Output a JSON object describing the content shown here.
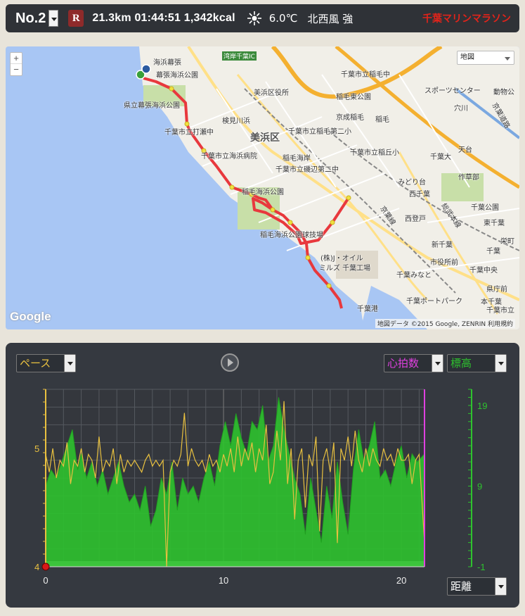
{
  "header": {
    "run_number": "No.2",
    "route_badge": "R",
    "stats": "21.3km 01:44:51 1,342kcal",
    "weather_icon": "sun-icon",
    "temperature": "6.0℃",
    "wind": "北西風 強",
    "event_name": "千葉マリンマラソン",
    "event_color": "#e2231a"
  },
  "map": {
    "zoom_in": "+",
    "zoom_out": "−",
    "type_selector": "地図",
    "logo": "Google",
    "attribution": "地図データ ©2015 Google, ZENRIN   利用規約",
    "labels": {
      "l1": "海浜幕張",
      "l2": "幕張海浜公園",
      "l3": "県立幕張海浜公園",
      "l4": "湾岸千葉IC",
      "l5": "千葉市立稲毛中",
      "l6": "美浜区役所",
      "l7": "稲毛東公園",
      "l8": "検見川浜",
      "l9": "京成稲毛",
      "l10": "稲毛",
      "l11": "千葉市立打瀬中",
      "l12": "美浜区",
      "l13": "千葉市立稲毛第二小",
      "l14": "千葉市立海浜病院",
      "l15": "稲毛海岸",
      "l16": "千葉市立稲丘小",
      "l17": "千葉市立磯辺第二中",
      "l18": "みどり台",
      "l19": "稲毛海浜公園",
      "l20": "稲毛海浜公園球技場",
      "l21": "(株)J・オイル",
      "l22": "ミルズ 千葉工場",
      "l23": "千葉港",
      "l24": "千葉ポートパーク",
      "l25": "スポーツセンター",
      "l26": "動物公",
      "l27": "穴川",
      "l28": "京葉道路",
      "l29": "千葉大",
      "l30": "天台",
      "l31": "作草部",
      "l32": "西千葉",
      "l33": "京葉線",
      "l34": "総武本線",
      "l35": "千葉公園",
      "l36": "西登戸",
      "l37": "東千葉",
      "l38": "新千葉",
      "l39": "栄町",
      "l40": "市役所前",
      "l41": "千葉中央",
      "l42": "千葉みなと",
      "l43": "県庁前",
      "l44": "本千葉",
      "l45": "千葉市立",
      "l46": "千葉"
    },
    "route_numbers": [
      "15",
      "20",
      "133",
      "14",
      "357",
      "5",
      "15",
      "10",
      "51"
    ],
    "colors": {
      "sea": "#a8c6f4",
      "land": "#f1efe8",
      "route": "#e8383d"
    }
  },
  "chart_panel": {
    "left_metric": "ペース",
    "heart_rate": "心拍数",
    "elevation": "標高",
    "x_metric": "距離",
    "play_icon": "play-icon",
    "colors": {
      "pace": "#e8c040",
      "heart": "#e040e0",
      "elevation": "#2ec22e"
    }
  },
  "chart_data": {
    "type": "area",
    "xlabel": "",
    "x_ticks": [
      "0",
      "10",
      "20"
    ],
    "xlim": [
      0,
      21.3
    ],
    "left_axis": {
      "ticks": [
        "4",
        "5"
      ],
      "ylim": [
        4,
        5.5
      ]
    },
    "right_axis": {
      "ticks": [
        "-1",
        "9",
        "19"
      ],
      "ylim": [
        -1,
        21
      ]
    },
    "series": [
      {
        "name": "標高",
        "axis": "right",
        "x": [
          0,
          0.3,
          0.6,
          0.9,
          1.2,
          1.5,
          1.8,
          2.0,
          2.3,
          2.6,
          2.9,
          3.2,
          3.5,
          3.8,
          4.1,
          4.4,
          4.7,
          5.0,
          5.3,
          5.6,
          5.9,
          6.2,
          6.5,
          6.8,
          7.1,
          7.4,
          7.7,
          8.0,
          8.3,
          8.6,
          8.9,
          9.2,
          9.5,
          9.8,
          10.1,
          10.4,
          10.7,
          11.0,
          11.3,
          11.6,
          11.9,
          12.2,
          12.5,
          12.8,
          13.1,
          13.4,
          13.7,
          14.0,
          14.3,
          14.6,
          14.9,
          15.2,
          15.5,
          15.8,
          16.1,
          16.4,
          16.7,
          17.0,
          17.3,
          17.6,
          17.9,
          18.2,
          18.5,
          18.8,
          19.1,
          19.4,
          19.7,
          20.0,
          20.3,
          20.6,
          20.9,
          21.3
        ],
        "values": [
          9,
          11,
          10,
          12,
          14,
          16,
          11,
          13,
          10,
          12,
          9,
          11,
          8,
          10,
          12,
          9,
          7,
          8,
          6,
          9,
          4,
          6,
          10,
          8,
          12,
          6,
          10,
          8,
          9,
          7,
          10,
          12,
          9,
          14,
          17,
          14,
          18,
          15,
          13,
          17,
          16,
          19,
          12,
          14,
          20,
          16,
          13,
          10,
          8,
          3,
          10,
          6,
          2,
          9,
          5,
          12,
          7,
          3,
          11,
          16,
          12,
          14,
          17,
          10,
          11,
          9,
          12,
          14,
          10,
          13,
          12,
          13
        ]
      },
      {
        "name": "ペース",
        "axis": "left",
        "x": [
          0,
          0.2,
          0.4,
          0.6,
          0.8,
          1.0,
          1.2,
          1.4,
          1.6,
          1.8,
          2.0,
          2.2,
          2.4,
          2.6,
          2.8,
          3.0,
          3.2,
          3.4,
          3.6,
          3.8,
          4.0,
          4.2,
          4.4,
          4.6,
          4.8,
          5.0,
          5.2,
          5.4,
          5.6,
          5.8,
          6.0,
          6.2,
          6.4,
          6.6,
          6.8,
          7.0,
          7.2,
          7.4,
          7.6,
          7.8,
          8.0,
          8.2,
          8.4,
          8.6,
          8.8,
          9.0,
          9.2,
          9.4,
          9.6,
          9.8,
          10.0,
          10.2,
          10.4,
          10.6,
          10.8,
          11.0,
          11.2,
          11.4,
          11.6,
          11.8,
          12.0,
          12.2,
          12.4,
          12.6,
          12.8,
          13.0,
          13.2,
          13.4,
          13.6,
          13.8,
          14.0,
          14.2,
          14.4,
          14.6,
          14.8,
          15.0,
          15.2,
          15.4,
          15.6,
          15.8,
          16.0,
          16.2,
          16.4,
          16.6,
          16.8,
          17.0,
          17.2,
          17.4,
          17.6,
          17.8,
          18.0,
          18.2,
          18.4,
          18.6,
          18.8,
          19.0,
          19.2,
          19.4,
          19.6,
          19.8,
          20.0,
          20.2,
          20.4,
          20.6,
          20.8,
          21.0,
          21.3
        ],
        "values": [
          4.95,
          4.8,
          5.0,
          4.75,
          4.9,
          4.85,
          5.05,
          4.7,
          4.9,
          4.85,
          5.0,
          4.8,
          4.95,
          4.9,
          4.75,
          5.1,
          4.8,
          4.9,
          4.85,
          5.0,
          4.7,
          4.95,
          4.8,
          4.9,
          4.85,
          4.9,
          4.85,
          4.8,
          4.9,
          4.95,
          4.85,
          4.9,
          4.85,
          4.9,
          4.0,
          4.8,
          4.9,
          4.85,
          4.95,
          5.3,
          4.85,
          5.0,
          4.9,
          4.85,
          4.9,
          4.8,
          4.95,
          4.85,
          4.9,
          4.8,
          4.95,
          4.85,
          5.0,
          4.8,
          5.1,
          4.85,
          5.0,
          4.9,
          5.05,
          4.8,
          5.0,
          4.9,
          5.2,
          4.7,
          4.8,
          5.15,
          4.9,
          5.4,
          4.7,
          5.0,
          4.4,
          4.9,
          5.0,
          4.5,
          4.95,
          4.85,
          5.1,
          4.3,
          4.9,
          5.0,
          4.8,
          5.05,
          4.2,
          5.0,
          4.9,
          5.1,
          4.85,
          5.15,
          4.9,
          4.8,
          5.0,
          4.85,
          5.0,
          4.9,
          4.85,
          5.0,
          4.9,
          4.95,
          4.85,
          5.0,
          4.9,
          4.9,
          4.95,
          4.7,
          4.9,
          4.95,
          4.2
        ]
      }
    ]
  }
}
